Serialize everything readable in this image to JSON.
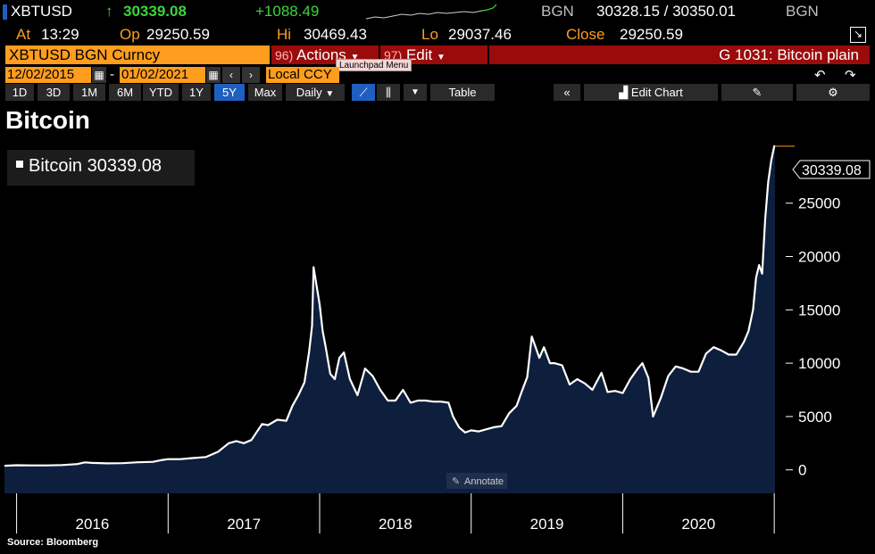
{
  "ticker_row": {
    "ticker": "XBTUSD",
    "arrow": "↑",
    "last_price": "30339.08",
    "change": "+1088.49",
    "source": "BGN",
    "bid_ask": "30328.15 / 30350.01",
    "source2": "BGN"
  },
  "stats_row": {
    "at_label": "At",
    "at_value": "13:29",
    "op_label": "Op",
    "op_value": "29250.59",
    "hi_label": "Hi",
    "hi_value": "30469.43",
    "lo_label": "Lo",
    "lo_value": "29037.46",
    "close_label": "Close",
    "close_value": "29250.59"
  },
  "menu_row": {
    "security": "XBTUSD BGN Curncy",
    "actions_num": "96)",
    "actions_label": "Actions",
    "edit_num": "97)",
    "edit_label": "Edit",
    "tooltip": "Launchpad Menu",
    "chart_id": "G 1031: Bitcoin plain"
  },
  "date_row": {
    "start_date": "12/02/2015",
    "dash": "-",
    "end_date": "01/02/2021",
    "currency": "Local CCY"
  },
  "toolbar": {
    "ranges": [
      "1D",
      "3D",
      "1M",
      "6M",
      "YTD",
      "1Y",
      "5Y",
      "Max"
    ],
    "active_range": "5Y",
    "frequency": "Daily",
    "table_label": "Table",
    "edit_chart_label": "Edit Chart"
  },
  "chart_data": {
    "type": "area",
    "title": "Bitcoin",
    "legend": "Bitcoin 30339.08",
    "last_value_label": "30339.08",
    "source": "Source:  Bloomberg",
    "annotate_label": "Annotate",
    "ylim": [
      -2200,
      31500
    ],
    "yticks": [
      0,
      5000,
      10000,
      15000,
      20000,
      25000
    ],
    "xlim": [
      2015.92,
      2021.005
    ],
    "xticks": [
      {
        "label": "2016",
        "pos": 2016.5
      },
      {
        "label": "2017",
        "pos": 2017.5
      },
      {
        "label": "2018",
        "pos": 2018.5
      },
      {
        "label": "2019",
        "pos": 2019.5
      },
      {
        "label": "2020",
        "pos": 2020.5
      }
    ],
    "year_boundaries": [
      2016,
      2017,
      2018,
      2019,
      2020,
      2021
    ],
    "colors": {
      "line": "#ffffff",
      "fill": "#0e1f3d",
      "last_marker": "#ff9d1e"
    },
    "series": [
      {
        "name": "Bitcoin",
        "x": [
          2015.92,
          2016.0,
          2016.1,
          2016.2,
          2016.3,
          2016.4,
          2016.45,
          2016.5,
          2016.6,
          2016.7,
          2016.8,
          2016.9,
          2016.95,
          2017.0,
          2017.08,
          2017.16,
          2017.25,
          2017.33,
          2017.4,
          2017.45,
          2017.5,
          2017.55,
          2017.62,
          2017.66,
          2017.72,
          2017.78,
          2017.82,
          2017.86,
          2017.9,
          2017.93,
          2017.95,
          2017.96,
          2018.0,
          2018.02,
          2018.04,
          2018.07,
          2018.1,
          2018.13,
          2018.16,
          2018.2,
          2018.25,
          2018.3,
          2018.35,
          2018.4,
          2018.45,
          2018.5,
          2018.55,
          2018.6,
          2018.65,
          2018.7,
          2018.75,
          2018.8,
          2018.85,
          2018.88,
          2018.92,
          2018.96,
          2019.0,
          2019.05,
          2019.1,
          2019.15,
          2019.2,
          2019.25,
          2019.3,
          2019.33,
          2019.37,
          2019.4,
          2019.45,
          2019.48,
          2019.52,
          2019.55,
          2019.6,
          2019.65,
          2019.7,
          2019.75,
          2019.8,
          2019.83,
          2019.86,
          2019.9,
          2019.95,
          2020.0,
          2020.05,
          2020.1,
          2020.13,
          2020.17,
          2020.2,
          2020.25,
          2020.3,
          2020.35,
          2020.4,
          2020.45,
          2020.5,
          2020.55,
          2020.6,
          2020.65,
          2020.7,
          2020.75,
          2020.8,
          2020.83,
          2020.86,
          2020.88,
          2020.9,
          2020.92,
          2020.94,
          2020.96,
          2020.98,
          2021.0,
          2021.005
        ],
        "y": [
          380,
          430,
          420,
          420,
          450,
          540,
          700,
          650,
          610,
          630,
          710,
          750,
          900,
          1000,
          1000,
          1100,
          1200,
          1700,
          2500,
          2700,
          2500,
          2800,
          4300,
          4200,
          4700,
          4600,
          6000,
          7000,
          8200,
          11000,
          13500,
          19000,
          15500,
          13000,
          11500,
          9000,
          8500,
          10500,
          11000,
          8500,
          7000,
          9500,
          8800,
          7500,
          6500,
          6500,
          7500,
          6300,
          6500,
          6500,
          6400,
          6400,
          6300,
          5000,
          4000,
          3500,
          3700,
          3600,
          3800,
          4000,
          4100,
          5300,
          6000,
          7200,
          8700,
          12500,
          10500,
          11500,
          10000,
          10000,
          9800,
          8000,
          8500,
          8100,
          7500,
          8300,
          9100,
          7300,
          7400,
          7200,
          8500,
          9500,
          10000,
          8600,
          5000,
          6700,
          8800,
          9700,
          9500,
          9200,
          9200,
          10900,
          11500,
          11200,
          10800,
          10800,
          12000,
          13000,
          15000,
          18000,
          19200,
          18400,
          23500,
          27000,
          29000,
          30339.08,
          30339.08
        ]
      }
    ]
  }
}
